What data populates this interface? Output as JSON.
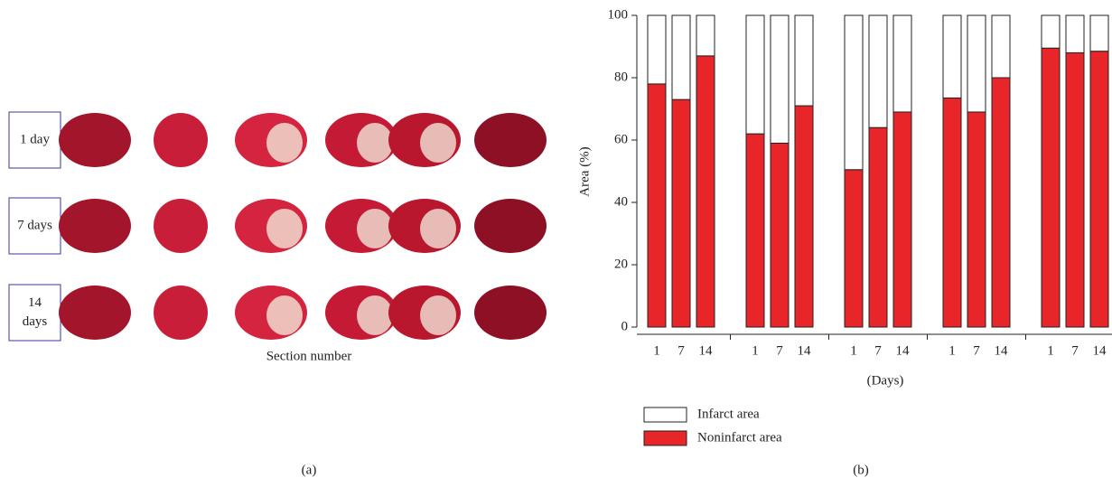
{
  "panel_a": {
    "row_labels": [
      "1 day",
      "7 days",
      "14 days"
    ],
    "x_label": "Section number",
    "caption": "(a)"
  },
  "caption_b": "(b)",
  "chart_data": {
    "type": "stacked-bar",
    "categories": [
      "1",
      "7",
      "14",
      "1",
      "7",
      "14",
      "1",
      "7",
      "14",
      "1",
      "7",
      "14",
      "1",
      "7",
      "14"
    ],
    "series": [
      {
        "name": "Infarct area",
        "color": "#ffffff",
        "values": [
          22,
          27,
          13,
          38,
          41,
          29,
          49.5,
          36,
          31,
          26.5,
          31,
          20,
          10.5,
          12,
          11.5
        ]
      },
      {
        "name": "Noninfarct area",
        "color": "#e8262a",
        "values": [
          78,
          73,
          87,
          62,
          59,
          71,
          50.5,
          64,
          69,
          73.5,
          69,
          80,
          89.5,
          88,
          88.5
        ]
      }
    ],
    "x_label": "(Days)",
    "y_label": "Area (%)",
    "ylim": [
      0,
      100
    ],
    "yticks": [
      0,
      20,
      40,
      60,
      80,
      100
    ]
  }
}
